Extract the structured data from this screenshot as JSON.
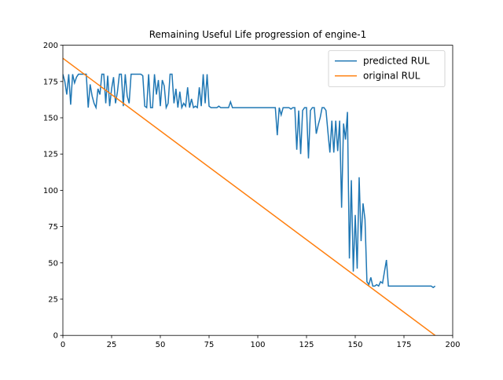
{
  "chart_data": {
    "type": "line",
    "title": "Remaining Useful Life progression of engine-1",
    "xlim": [
      0,
      200
    ],
    "xticks": [
      0,
      25,
      50,
      75,
      100,
      125,
      150,
      175,
      200
    ],
    "ylim": [
      0,
      200
    ],
    "yticks": [
      0,
      25,
      50,
      75,
      100,
      125,
      150,
      175,
      200
    ],
    "legend": "upper right",
    "series": [
      {
        "name": "predicted RUL",
        "color": "#1f77b4",
        "x": [
          0,
          1,
          2,
          3,
          4,
          5,
          6,
          7,
          8,
          9,
          10,
          11,
          12,
          13,
          14,
          15,
          16,
          17,
          18,
          19,
          20,
          21,
          22,
          23,
          24,
          25,
          26,
          27,
          28,
          29,
          30,
          31,
          32,
          33,
          34,
          35,
          36,
          37,
          38,
          39,
          40,
          41,
          42,
          43,
          44,
          45,
          46,
          47,
          48,
          49,
          50,
          51,
          52,
          53,
          54,
          55,
          56,
          57,
          58,
          59,
          60,
          61,
          62,
          63,
          64,
          65,
          66,
          67,
          68,
          69,
          70,
          71,
          72,
          73,
          74,
          75,
          76,
          77,
          78,
          79,
          80,
          81,
          82,
          83,
          84,
          85,
          86,
          87,
          88,
          89,
          90,
          91,
          92,
          93,
          94,
          95,
          96,
          97,
          98,
          99,
          100,
          101,
          102,
          103,
          104,
          105,
          106,
          107,
          108,
          109,
          110,
          111,
          112,
          113,
          114,
          115,
          116,
          117,
          118,
          119,
          120,
          121,
          122,
          123,
          124,
          125,
          126,
          127,
          128,
          129,
          130,
          131,
          132,
          133,
          134,
          135,
          136,
          137,
          138,
          139,
          140,
          141,
          142,
          143,
          144,
          145,
          146,
          147,
          148,
          149,
          150,
          151,
          152,
          153,
          154,
          155,
          156,
          157,
          158,
          159,
          160,
          161,
          162,
          163,
          164,
          165,
          166,
          167,
          168,
          169,
          170,
          171,
          172,
          173,
          174,
          175,
          176,
          177,
          178,
          179,
          180,
          181,
          182,
          183,
          184,
          185,
          186,
          187,
          188,
          189,
          190,
          191
        ],
        "values": [
          180,
          175,
          166,
          180,
          159,
          180,
          174,
          178,
          180,
          180,
          180,
          180,
          180,
          157,
          173,
          165,
          160,
          157,
          170,
          166,
          180,
          180,
          160,
          179,
          158,
          170,
          178,
          160,
          168,
          180,
          180,
          158,
          180,
          165,
          160,
          180,
          180,
          180,
          180,
          180,
          180,
          179,
          158,
          157,
          180,
          157,
          157,
          180,
          166,
          176,
          158,
          176,
          172,
          157,
          160,
          180,
          180,
          160,
          170,
          157,
          168,
          157,
          160,
          158,
          171,
          157,
          163,
          157,
          158,
          157,
          171,
          158,
          180,
          160,
          180,
          158,
          157,
          157,
          157,
          157,
          158,
          157,
          157,
          157,
          157,
          157,
          161,
          157,
          157,
          157,
          157,
          157,
          157,
          157,
          157,
          157,
          157,
          157,
          157,
          157,
          157,
          157,
          157,
          157,
          157,
          157,
          157,
          157,
          157,
          157,
          138,
          157,
          152,
          157,
          157,
          157,
          157,
          156,
          157,
          157,
          128,
          155,
          125,
          155,
          157,
          157,
          122,
          155,
          157,
          157,
          139,
          145,
          150,
          157,
          157,
          155,
          140,
          126,
          148,
          126,
          148,
          127,
          148,
          88,
          146,
          135,
          154,
          53,
          107,
          44,
          83,
          46,
          109,
          65,
          91,
          80,
          37,
          35,
          40,
          34,
          34,
          35,
          34,
          37,
          36,
          44,
          52,
          34,
          34,
          34,
          34,
          34,
          34,
          34,
          34,
          34,
          34,
          34,
          34,
          34,
          34,
          34,
          34,
          34,
          34,
          34,
          34,
          34,
          34,
          34,
          33,
          34
        ]
      },
      {
        "name": "original RUL",
        "color": "#ff7f0e",
        "x": [
          0,
          191
        ],
        "values": [
          191,
          0
        ]
      }
    ]
  }
}
